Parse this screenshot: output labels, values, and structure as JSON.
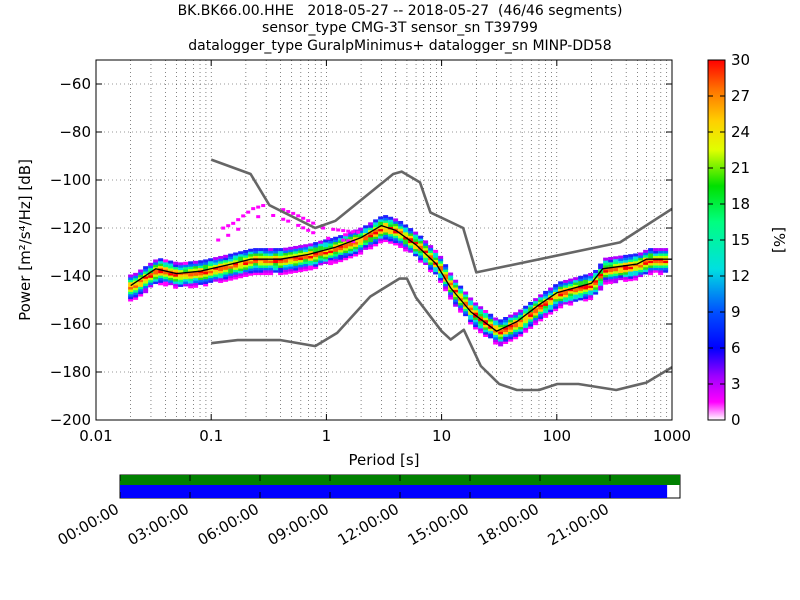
{
  "title_lines": [
    "BK.BK66.00.HHE   2018-05-27 -- 2018-05-27  (46/46 segments)",
    "sensor_type CMG-3T sensor_sn T39799",
    "datalogger_type GuralpMinimus+ datalogger_sn MINP-DD58"
  ],
  "colorbar": {
    "label": "[%]",
    "ticks": [
      0,
      3,
      6,
      9,
      12,
      15,
      18,
      21,
      24,
      27,
      30
    ],
    "range": [
      0,
      30
    ]
  },
  "timeline": {
    "ticks": [
      "00:00:00",
      "03:00:00",
      "06:00:00",
      "09:00:00",
      "12:00:00",
      "15:00:00",
      "18:00:00",
      "21:00:00"
    ],
    "top_bar_color": "#008000",
    "bottom_bar_color": "#0000ff",
    "coverage_fraction": 0.977
  },
  "chart_data": {
    "type": "heatmap",
    "title": "BK.BK66.00.HHE   2018-05-27 -- 2018-05-27  (46/46 segments)",
    "xlabel": "Period [s]",
    "ylabel": "Power [m²/s⁴/Hz] [dB]",
    "x_scale": "log",
    "xlim": [
      0.01,
      1000
    ],
    "ylim": [
      -200,
      -50
    ],
    "x_ticks": [
      0.01,
      0.1,
      1,
      10,
      100,
      1000
    ],
    "x_tick_labels": [
      "0.01",
      "0.1",
      "1",
      "10",
      "100",
      "1000"
    ],
    "y_ticks": [
      -200,
      -180,
      -160,
      -140,
      -120,
      -100,
      -80,
      -60
    ],
    "grid": true,
    "colormap": "pqlx",
    "series": [
      {
        "name": "NHNM",
        "color": "#666666",
        "points": [
          [
            0.1,
            -91.5
          ],
          [
            0.22,
            -97.5
          ],
          [
            0.32,
            -110.5
          ],
          [
            0.8,
            -120
          ],
          [
            1.2,
            -117
          ],
          [
            3.8,
            -97.5
          ],
          [
            4.5,
            -96.5
          ],
          [
            6.5,
            -101
          ],
          [
            8,
            -113.5
          ],
          [
            15.4,
            -120
          ],
          [
            20,
            -138.5
          ],
          [
            354,
            -126
          ],
          [
            1000,
            -112
          ]
        ]
      },
      {
        "name": "NLNM",
        "color": "#666666",
        "points": [
          [
            0.1,
            -168
          ],
          [
            0.17,
            -166.7
          ],
          [
            0.4,
            -166.7
          ],
          [
            0.8,
            -169.2
          ],
          [
            1.24,
            -163.7
          ],
          [
            2.4,
            -148.6
          ],
          [
            4.3,
            -141.1
          ],
          [
            5,
            -141.1
          ],
          [
            6,
            -149
          ],
          [
            10,
            -163
          ],
          [
            12,
            -166.5
          ],
          [
            15.6,
            -162.4
          ],
          [
            21.9,
            -177.5
          ],
          [
            31.6,
            -185
          ],
          [
            45,
            -187.5
          ],
          [
            70,
            -187.5
          ],
          [
            101,
            -185
          ],
          [
            154,
            -185
          ],
          [
            328,
            -187.5
          ],
          [
            600,
            -184.4
          ],
          [
            1000,
            -178
          ]
        ]
      },
      {
        "name": "mode",
        "color": "#000000",
        "points": [
          [
            0.02,
            -144
          ],
          [
            0.033,
            -137
          ],
          [
            0.05,
            -139
          ],
          [
            0.08,
            -138
          ],
          [
            0.15,
            -135
          ],
          [
            0.22,
            -133
          ],
          [
            0.4,
            -133
          ],
          [
            0.7,
            -131
          ],
          [
            1.2,
            -128
          ],
          [
            2,
            -124
          ],
          [
            3,
            -119
          ],
          [
            4,
            -121
          ],
          [
            6,
            -127
          ],
          [
            9,
            -135
          ],
          [
            12,
            -145
          ],
          [
            18,
            -155
          ],
          [
            30,
            -163
          ],
          [
            45,
            -159
          ],
          [
            70,
            -152
          ],
          [
            100,
            -147
          ],
          [
            200,
            -143
          ],
          [
            250,
            -137
          ],
          [
            500,
            -135
          ],
          [
            600,
            -133
          ],
          [
            1000,
            -133
          ]
        ]
      },
      {
        "name": "high_band",
        "color": "#ff00ff",
        "points": [
          [
            0.1,
            -122
          ],
          [
            0.15,
            -118
          ],
          [
            0.22,
            -112
          ],
          [
            0.3,
            -110
          ],
          [
            0.5,
            -114
          ],
          [
            0.9,
            -120
          ],
          [
            1.3,
            -121
          ],
          [
            2,
            -122
          ]
        ]
      }
    ],
    "color_scale_label": "[%]",
    "color_scale_range": [
      0,
      30
    ]
  }
}
